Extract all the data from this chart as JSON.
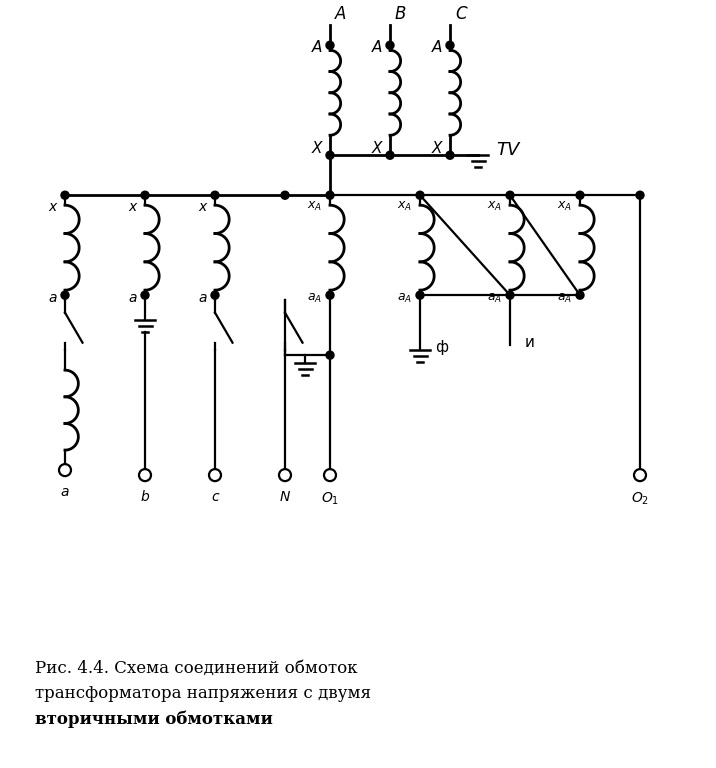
{
  "title_line1": "Рис. 4.4. Схема соединений обмоток",
  "title_line2": "трансформатора напряжения с двумя",
  "title_line3": "вторичными обмотками",
  "tv_label": "TV",
  "figsize": [
    7.16,
    7.68
  ],
  "dpi": 100,
  "bg": "white",
  "lw": 1.6
}
